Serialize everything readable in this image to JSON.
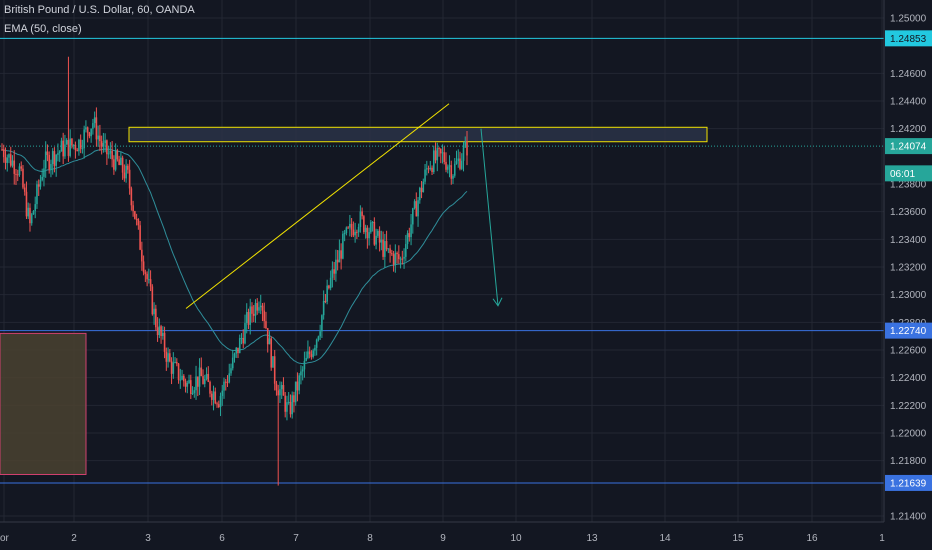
{
  "legend": {
    "title": "British Pound / U.S. Dollar, 60, OANDA",
    "ema": "EMA (50, close)"
  },
  "colors": {
    "background": "#131722",
    "grid": "#232733",
    "up": "#26a69a",
    "down": "#ef5350",
    "ema": "#2f8e9a",
    "cyan_level": "#22c9e0",
    "blue_level": "#3a72e0",
    "yellow": "#f2e300",
    "teal_arrow": "#26a69a",
    "zone_box_fill": "#4a4230",
    "zone_box_border": "#d0406e"
  },
  "chart_data": {
    "type": "candlestick",
    "symbol": "British Pound / U.S. Dollar, 60, OANDA",
    "indicator": "EMA (50, close)",
    "ylim": [
      1.213,
      1.251
    ],
    "y_ticks": [
      "1.25000",
      "1.24600",
      "1.24400",
      "1.24200",
      "1.23800",
      "1.23600",
      "1.23400",
      "1.23200",
      "1.23000",
      "1.22800",
      "1.22600",
      "1.22400",
      "1.22200",
      "1.22000",
      "1.21800",
      "1.21400"
    ],
    "x_ticks": [
      "or",
      "2",
      "3",
      "6",
      "7",
      "8",
      "9",
      "10",
      "13",
      "14",
      "15",
      "16",
      "1"
    ],
    "price_tags": [
      {
        "label": "1.24853",
        "value": 1.24853,
        "style": "cyan"
      },
      {
        "label": "1.24074",
        "value": 1.24074,
        "style": "current"
      },
      {
        "label": "06:01",
        "value": 1.23877,
        "style": "timer"
      },
      {
        "label": "1.22740",
        "value": 1.2274,
        "style": "blue"
      },
      {
        "label": "1.21639",
        "value": 1.21639,
        "style": "blue"
      }
    ],
    "horizontal_lines": [
      {
        "value": 1.24853,
        "color": "cyan"
      },
      {
        "value": 1.2274,
        "color": "blue"
      },
      {
        "value": 1.21639,
        "color": "blue"
      }
    ],
    "current_price": 1.24074,
    "resistance_zone": {
      "high": 1.2421,
      "low": 1.2412
    },
    "trendline": [
      {
        "x": "3",
        "y": 1.229
      },
      {
        "x": "9",
        "y": 1.2438
      }
    ],
    "projection_arrow": [
      {
        "x": "9",
        "y": 1.242
      },
      {
        "x": "10",
        "y": 1.2292
      }
    ],
    "demand_zone": {
      "high": 1.2272,
      "low": 1.217
    }
  }
}
